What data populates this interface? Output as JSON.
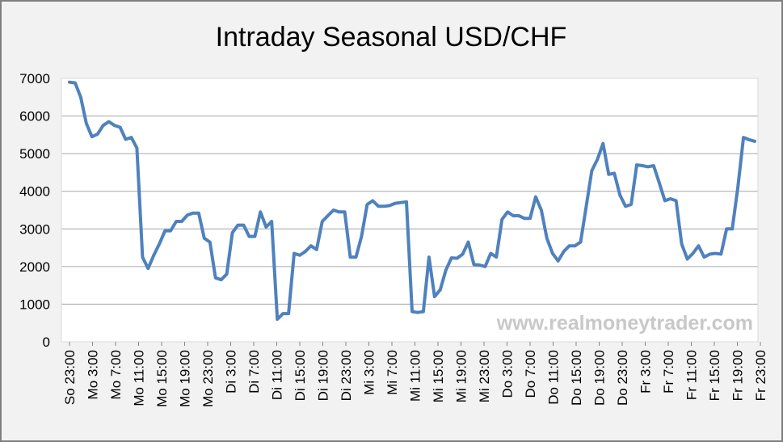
{
  "chart_data": {
    "type": "line",
    "title": "Intraday Seasonal USD/CHF",
    "xlabel": "",
    "ylabel": "",
    "ylim": [
      0,
      7000
    ],
    "yticks": [
      0,
      1000,
      2000,
      3000,
      4000,
      5000,
      6000,
      7000
    ],
    "grid": "horizontal",
    "legend": "none",
    "watermark": "www.realmoneytrader.com",
    "line_color": "#4f81bd",
    "xtick_labels": [
      "So 23:00",
      "Mo 3:00",
      "Mo 7:00",
      "Mo 11:00",
      "Mo 15:00",
      "Mo 19:00",
      "Mo 23:00",
      "Di 3:00",
      "Di 7:00",
      "Di 11:00",
      "Di 15:00",
      "Di 19:00",
      "Di 23:00",
      "Mi 3:00",
      "Mi 7:00",
      "Mi 11:00",
      "Mi 15:00",
      "Mi 19:00",
      "Mi 23:00",
      "Do 3:00",
      "Do 7:00",
      "Do 11:00",
      "Do 15:00",
      "Do 19:00",
      "Do 23:00",
      "Fr 3:00",
      "Fr 7:00",
      "Fr 11:00",
      "Fr 15:00",
      "Fr 19:00",
      "Fr 23:00"
    ],
    "series": [
      {
        "values": [
          6900,
          6880,
          6500,
          5800,
          5450,
          5520,
          5750,
          5850,
          5750,
          5700,
          5380,
          5430,
          5150,
          2250,
          1950,
          2300,
          2600,
          2950,
          2950,
          3200,
          3200,
          3370,
          3420,
          3420,
          2750,
          2650,
          1700,
          1650,
          1800,
          2900,
          3100,
          3100,
          2800,
          2800,
          3450,
          3050,
          3200,
          600,
          750,
          750,
          2350,
          2300,
          2400,
          2550,
          2450,
          3200,
          3350,
          3500,
          3450,
          3450,
          2250,
          2250,
          2800,
          3650,
          3750,
          3600,
          3600,
          3620,
          3680,
          3700,
          3720,
          800,
          780,
          800,
          2250,
          1200,
          1380,
          1900,
          2230,
          2220,
          2330,
          2650,
          2050,
          2040,
          2000,
          2350,
          2250,
          3250,
          3450,
          3350,
          3350,
          3280,
          3280,
          3850,
          3500,
          2750,
          2350,
          2150,
          2400,
          2550,
          2550,
          2650,
          3600,
          4550,
          4850,
          5270,
          4450,
          4480,
          3900,
          3600,
          3650,
          4700,
          4680,
          4650,
          4680,
          4230,
          3750,
          3800,
          3750,
          2600,
          2200,
          2350,
          2550,
          2250,
          2330,
          2350,
          2330,
          3000,
          3000,
          4100,
          5430,
          5370,
          5330
        ]
      }
    ]
  }
}
